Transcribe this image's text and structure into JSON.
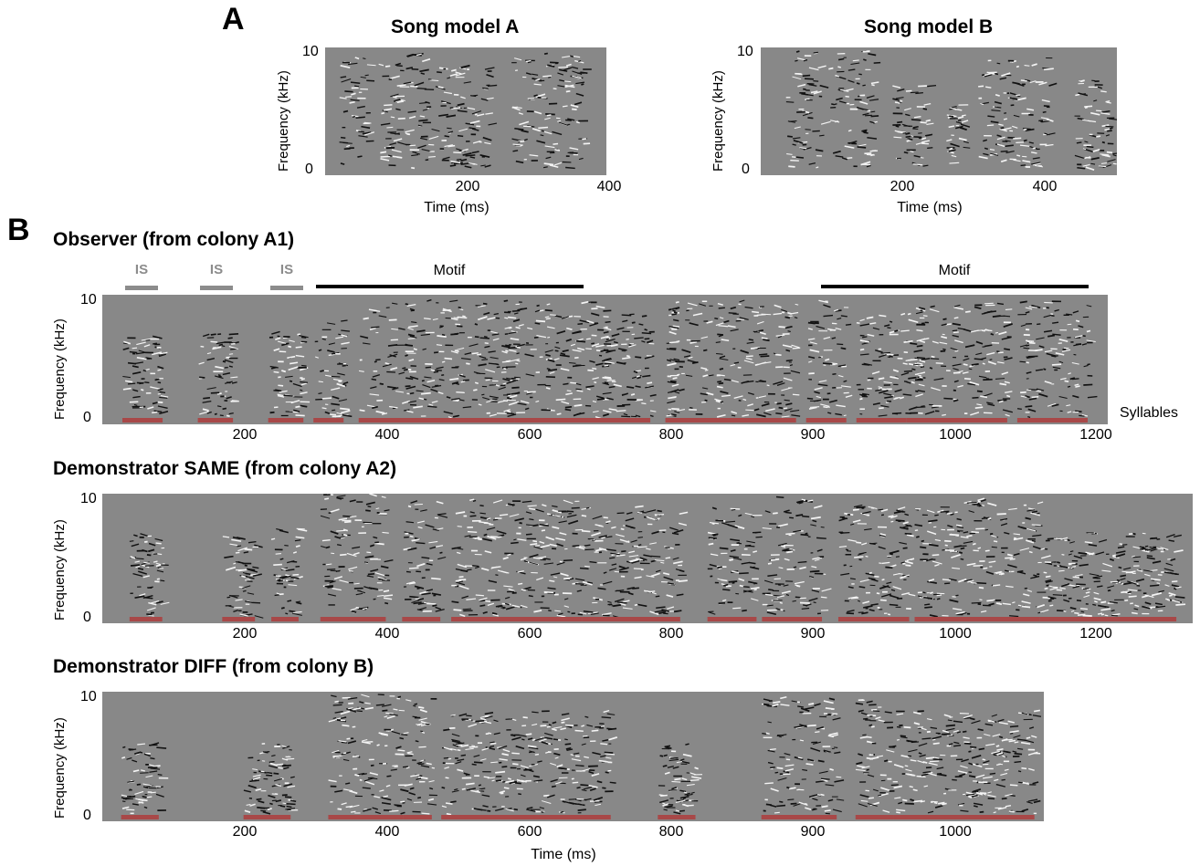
{
  "colors": {
    "background": "#888888",
    "syllable": "#a84848",
    "is_bar": "#8c8c8c",
    "motif_bar": "#000000"
  },
  "panelA": {
    "letter": "A",
    "left": {
      "title": "Song model A",
      "ylabel": "Frequency (kHz)",
      "xlabel": "Time (ms)",
      "yticks": [
        "10",
        "0"
      ],
      "xticks": [
        "200",
        "400"
      ]
    },
    "right": {
      "title": "Song model B",
      "ylabel": "Frequency (kHz)",
      "xlabel": "Time (ms)",
      "yticks": [
        "10",
        "0"
      ],
      "xticks": [
        "200",
        "400"
      ]
    }
  },
  "panelB": {
    "letter": "B",
    "observer": {
      "title": "Observer (from colony A1)",
      "ylabel": "Frequency (kHz)",
      "yticks": [
        "10",
        "0"
      ],
      "xticks": [
        "200",
        "400",
        "600",
        "800",
        "900",
        "1000",
        "1200"
      ],
      "is_labels": [
        "IS",
        "IS",
        "IS"
      ],
      "motif_labels": [
        "Motif",
        "Motif"
      ],
      "syllables_label": "Syllables"
    },
    "same": {
      "title": "Demonstrator SAME (from colony A2)",
      "ylabel": "Frequency (kHz)",
      "yticks": [
        "10",
        "0"
      ],
      "xticks": [
        "200",
        "400",
        "600",
        "800",
        "900",
        "1000",
        "1200"
      ]
    },
    "diff": {
      "title": "Demonstrator DIFF (from colony B)",
      "ylabel": "Frequency (kHz)",
      "yticks": [
        "10",
        "0"
      ],
      "xticks": [
        "200",
        "400",
        "600",
        "800",
        "900",
        "1000"
      ],
      "xlabel": "Time (ms)"
    }
  }
}
